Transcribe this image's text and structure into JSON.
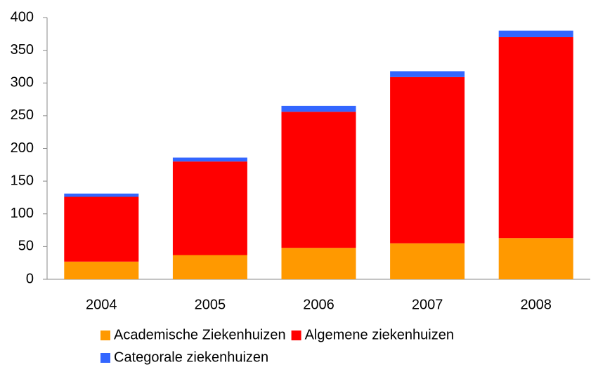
{
  "chart_data": {
    "type": "stacked_bar",
    "categories": [
      "2004",
      "2005",
      "2006",
      "2007",
      "2008"
    ],
    "series": [
      {
        "name": "Academische Ziekenhuizen",
        "color": "#ff9900",
        "values": [
          27,
          37,
          48,
          55,
          63
        ]
      },
      {
        "name": "Algemene ziekenhuizen",
        "color": "#ff0000",
        "values": [
          99,
          143,
          208,
          254,
          307
        ]
      },
      {
        "name": "Categorale ziekenhuizen",
        "color": "#3366ff",
        "values": [
          5,
          6,
          9,
          9,
          10
        ]
      }
    ],
    "ylim": [
      0,
      400
    ],
    "yticks": [
      0,
      50,
      100,
      150,
      200,
      250,
      300,
      350,
      400
    ],
    "grid": false
  }
}
